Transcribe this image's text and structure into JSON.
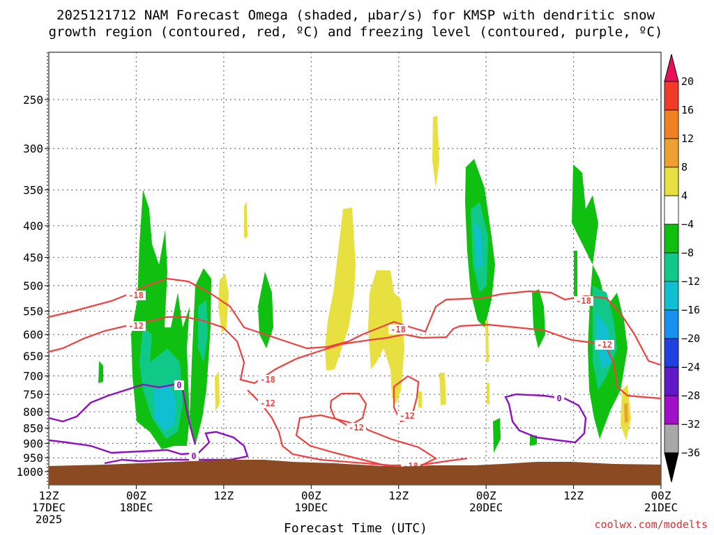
{
  "chart_data": {
    "type": "time-height cross section (filled contour + line contours)",
    "title_line1": "2025121712 NAM Forecast Omega (shaded, μbar/s) for KMSP with dendritic snow",
    "title_line2": "growth region (contoured, red, ºC) and freezing level (contoured, purple, ºC)",
    "xlabel": "Forecast Time (UTC)",
    "credit": "coolwx.com/modelts",
    "x_ticks": [
      {
        "hours": 0,
        "l1": "12Z",
        "l2": "17DEC",
        "l3": "2025"
      },
      {
        "hours": 12,
        "l1": "00Z",
        "l2": "18DEC",
        "l3": ""
      },
      {
        "hours": 24,
        "l1": "12Z",
        "l2": "",
        "l3": ""
      },
      {
        "hours": 36,
        "l1": "00Z",
        "l2": "19DEC",
        "l3": ""
      },
      {
        "hours": 48,
        "l1": "12Z",
        "l2": "",
        "l3": ""
      },
      {
        "hours": 60,
        "l1": "00Z",
        "l2": "20DEC",
        "l3": ""
      },
      {
        "hours": 72,
        "l1": "12Z",
        "l2": "",
        "l3": ""
      },
      {
        "hours": 84,
        "l1": "00Z",
        "l2": "21DEC",
        "l3": ""
      }
    ],
    "y_ticks_hpa": [
      250,
      300,
      350,
      400,
      450,
      500,
      550,
      600,
      650,
      700,
      750,
      800,
      850,
      900,
      950,
      1000
    ],
    "y_range_hpa": [
      1050,
      200
    ],
    "colorbar": {
      "levels": [
        "20",
        "16",
        "12",
        "8",
        "4",
        "−4",
        "−8",
        "−12",
        "−16",
        "−20",
        "−24",
        "−28",
        "−32",
        "−36"
      ],
      "colors": [
        "#e8105a",
        "#f03a2a",
        "#f08020",
        "#eea030",
        "#e8e040",
        "#ffffff",
        "#10c010",
        "#10c888",
        "#10c0d0",
        "#1890f0",
        "#2040e0",
        "#6018c8",
        "#a010c8",
        "#a8a8a8",
        "#000000"
      ]
    },
    "contour_labels": {
      "red": [
        "-18",
        "-12",
        "-18",
        "-12",
        "-18",
        "-12",
        "-12",
        "-18",
        "-18",
        "-12"
      ],
      "purple": [
        "0",
        "0",
        "0"
      ]
    },
    "colors": {
      "dgz_contour": "#f04040",
      "freezing_contour": "#9010c0",
      "terrain": "#8b4a22",
      "ascent_green": "#10c010",
      "ascent_teal": "#10c888",
      "ascent_cyan": "#10c0d0",
      "descent_yellow": "#e8e040",
      "descent_orange": "#eea030"
    }
  }
}
